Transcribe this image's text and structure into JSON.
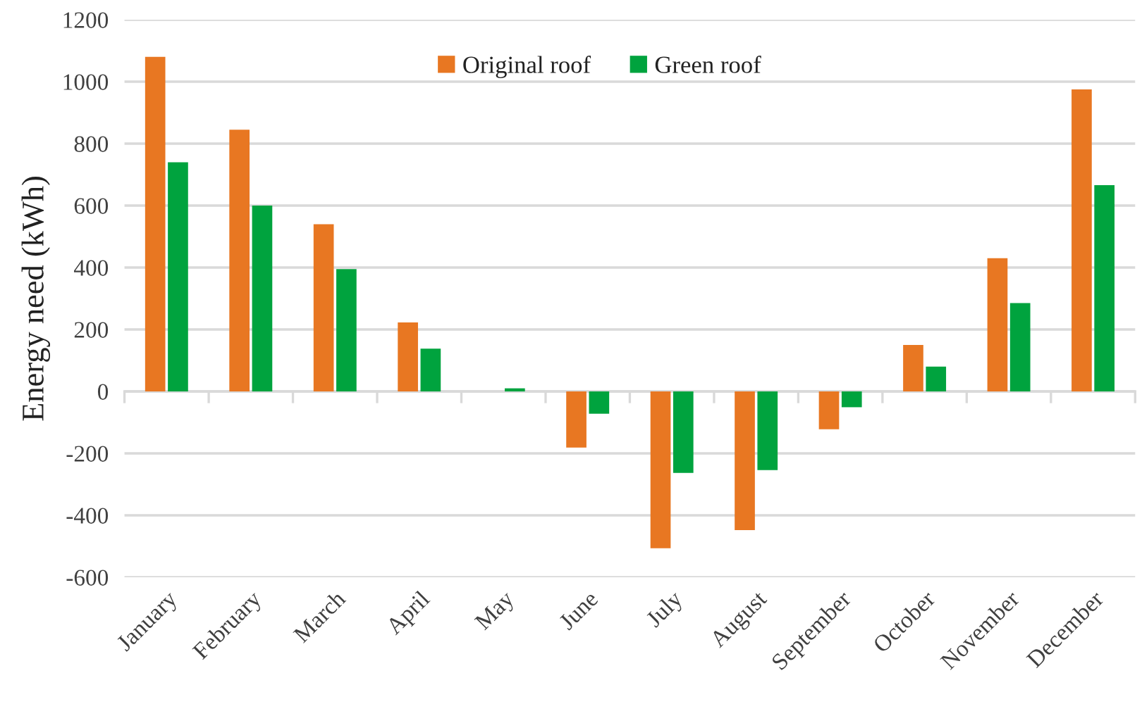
{
  "chart_data": {
    "type": "bar",
    "ylabel": "Energy need (kWh)",
    "categories": [
      "January",
      "February",
      "March",
      "April",
      "May",
      "June",
      "July",
      "August",
      "September",
      "October",
      "November",
      "December"
    ],
    "series": [
      {
        "name": "Original roof",
        "color": "#e87722",
        "values": [
          1080,
          845,
          540,
          223,
          0,
          -181,
          -506,
          -448,
          -122,
          150,
          430,
          975
        ]
      },
      {
        "name": "Green roof",
        "color": "#00a33e",
        "values": [
          740,
          600,
          395,
          138,
          10,
          -72,
          -263,
          -254,
          -51,
          80,
          285,
          666
        ]
      }
    ],
    "ylim": [
      -600,
      1200
    ],
    "yticks": [
      -600,
      -400,
      -200,
      0,
      200,
      400,
      600,
      800,
      1000,
      1200
    ],
    "grid": "y",
    "legend": "top"
  }
}
